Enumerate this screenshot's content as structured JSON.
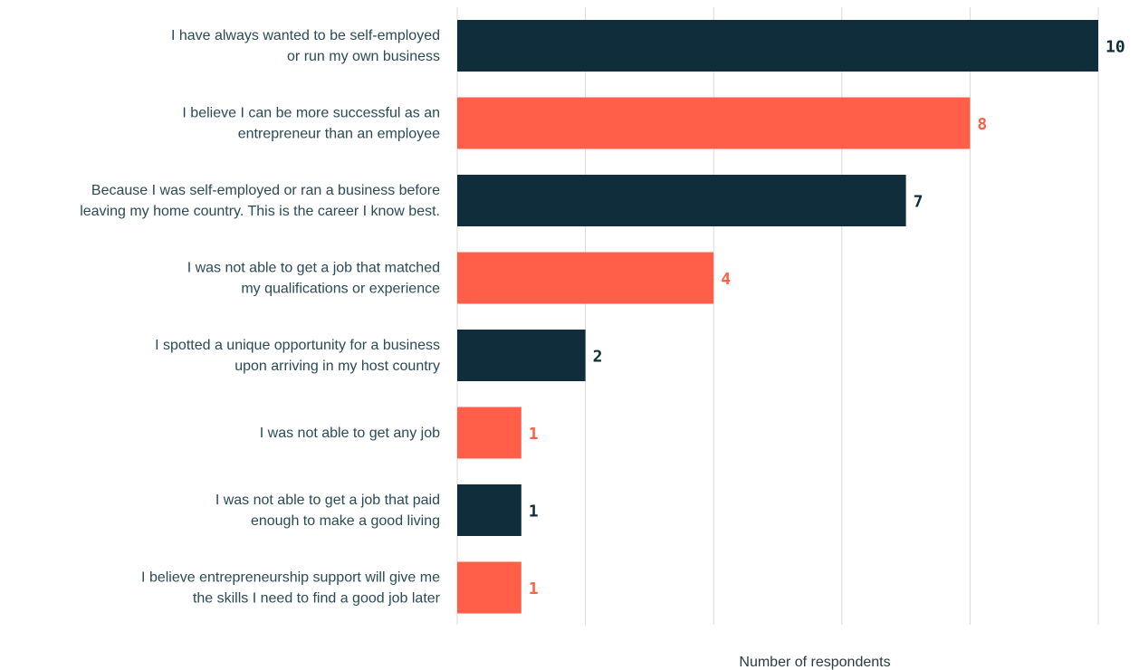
{
  "chart_data": {
    "type": "bar",
    "orientation": "horizontal",
    "categories": [
      [
        "I have always wanted to be self-employed",
        "or run my own business"
      ],
      [
        "I believe I can be more successful as an",
        "entrepreneur than an employee"
      ],
      [
        "Because I was self-employed or ran a business before",
        "leaving my home country. This is the career I know best."
      ],
      [
        "I was not able to get a job that matched",
        "my qualifications or experience"
      ],
      [
        "I spotted a unique opportunity for a business",
        "upon arriving in my host country"
      ],
      [
        "I was not able to get any job"
      ],
      [
        "I was not able to get a job that paid",
        "enough to make a good living"
      ],
      [
        "I believe entrepreneurship support will give me",
        "the skills I need to find a good job later"
      ]
    ],
    "values": [
      10,
      8,
      7,
      4,
      2,
      1,
      1,
      1
    ],
    "bar_colors": [
      "#0f2d3a",
      "#ff5f48",
      "#0f2d3a",
      "#ff5f48",
      "#0f2d3a",
      "#ff5f48",
      "#0f2d3a",
      "#ff5f48"
    ],
    "xlabel": "Number of respondents",
    "xlim": [
      0,
      10
    ],
    "gridlines": [
      0,
      2,
      4,
      6,
      8,
      10
    ],
    "grid": true,
    "data_labels": true
  }
}
